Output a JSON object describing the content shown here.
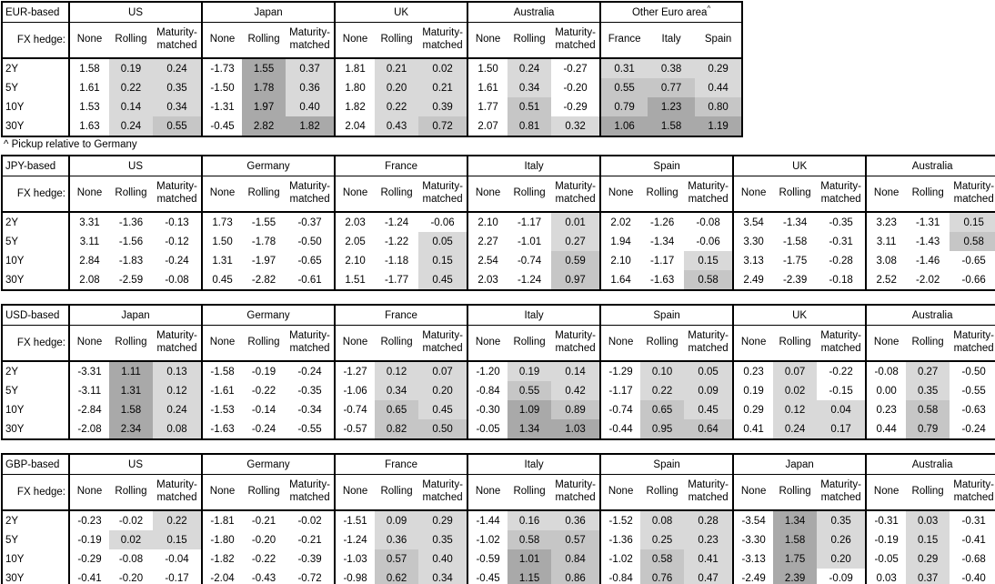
{
  "fx_hedge_label": "FX hedge:",
  "hedge_columns": [
    "None",
    "Rolling",
    "Maturity-matched"
  ],
  "tenors": [
    "2Y",
    "5Y",
    "10Y",
    "30Y"
  ],
  "footnote": "^ Pickup relative to Germany",
  "shade_colors": {
    "low": "#d9d9d9",
    "mid": "#c6c6c6",
    "high": "#a9a9a9"
  },
  "shade_thresholds": {
    "low_min": 0,
    "mid_min": 0.5,
    "high_min": 1.0
  },
  "tables": [
    {
      "base": "EUR-based",
      "full_width": false,
      "groups": [
        {
          "name": "US",
          "rows": [
            [
              "1.58",
              "0.19",
              "0.24"
            ],
            [
              "1.61",
              "0.22",
              "0.35"
            ],
            [
              "1.53",
              "0.14",
              "0.34"
            ],
            [
              "1.63",
              "0.24",
              "0.55"
            ]
          ]
        },
        {
          "name": "Japan",
          "rows": [
            [
              "-1.73",
              "1.55",
              "0.37"
            ],
            [
              "-1.50",
              "1.78",
              "0.36"
            ],
            [
              "-1.31",
              "1.97",
              "0.40"
            ],
            [
              "-0.45",
              "2.82",
              "1.82"
            ]
          ]
        },
        {
          "name": "UK",
          "rows": [
            [
              "1.81",
              "0.21",
              "0.02"
            ],
            [
              "1.80",
              "0.20",
              "0.21"
            ],
            [
              "1.82",
              "0.22",
              "0.39"
            ],
            [
              "2.04",
              "0.43",
              "0.72"
            ]
          ]
        },
        {
          "name": "Australia",
          "rows": [
            [
              "1.50",
              "0.24",
              "-0.27"
            ],
            [
              "1.61",
              "0.34",
              "-0.20"
            ],
            [
              "1.77",
              "0.51",
              "-0.29"
            ],
            [
              "2.07",
              "0.81",
              "0.32"
            ]
          ]
        },
        {
          "name": "Other Euro area",
          "sup": "^",
          "columns": [
            "France",
            "Italy",
            "Spain"
          ],
          "shade_all": true,
          "rows": [
            [
              "0.31",
              "0.38",
              "0.29"
            ],
            [
              "0.55",
              "0.77",
              "0.44"
            ],
            [
              "0.79",
              "1.23",
              "0.80"
            ],
            [
              "1.06",
              "1.58",
              "1.19"
            ]
          ]
        }
      ]
    },
    {
      "base": "JPY-based",
      "full_width": true,
      "groups": [
        {
          "name": "US",
          "rows": [
            [
              "3.31",
              "-1.36",
              "-0.13"
            ],
            [
              "3.11",
              "-1.56",
              "-0.12"
            ],
            [
              "2.84",
              "-1.83",
              "-0.24"
            ],
            [
              "2.08",
              "-2.59",
              "-0.08"
            ]
          ]
        },
        {
          "name": "Germany",
          "rows": [
            [
              "1.73",
              "-1.55",
              "-0.37"
            ],
            [
              "1.50",
              "-1.78",
              "-0.50"
            ],
            [
              "1.31",
              "-1.97",
              "-0.65"
            ],
            [
              "0.45",
              "-2.82",
              "-0.61"
            ]
          ]
        },
        {
          "name": "France",
          "rows": [
            [
              "2.03",
              "-1.24",
              "-0.06"
            ],
            [
              "2.05",
              "-1.22",
              "0.05"
            ],
            [
              "2.10",
              "-1.18",
              "0.15"
            ],
            [
              "1.51",
              "-1.77",
              "0.45"
            ]
          ]
        },
        {
          "name": "Italy",
          "rows": [
            [
              "2.10",
              "-1.17",
              "0.01"
            ],
            [
              "2.27",
              "-1.01",
              "0.27"
            ],
            [
              "2.54",
              "-0.74",
              "0.59"
            ],
            [
              "2.03",
              "-1.24",
              "0.97"
            ]
          ]
        },
        {
          "name": "Spain",
          "rows": [
            [
              "2.02",
              "-1.26",
              "-0.08"
            ],
            [
              "1.94",
              "-1.34",
              "-0.06"
            ],
            [
              "2.10",
              "-1.17",
              "0.15"
            ],
            [
              "1.64",
              "-1.63",
              "0.58"
            ]
          ]
        },
        {
          "name": "UK",
          "rows": [
            [
              "3.54",
              "-1.34",
              "-0.35"
            ],
            [
              "3.30",
              "-1.58",
              "-0.31"
            ],
            [
              "3.13",
              "-1.75",
              "-0.28"
            ],
            [
              "2.49",
              "-2.39",
              "-0.18"
            ]
          ]
        },
        {
          "name": "Australia",
          "rows": [
            [
              "3.23",
              "-1.31",
              "0.15"
            ],
            [
              "3.11",
              "-1.43",
              "0.58"
            ],
            [
              "3.08",
              "-1.46",
              "-0.65"
            ],
            [
              "2.52",
              "-2.02",
              "-0.66"
            ]
          ]
        }
      ]
    },
    {
      "base": "USD-based",
      "full_width": true,
      "groups": [
        {
          "name": "Japan",
          "rows": [
            [
              "-3.31",
              "1.11",
              "0.13"
            ],
            [
              "-3.11",
              "1.31",
              "0.12"
            ],
            [
              "-2.84",
              "1.58",
              "0.24"
            ],
            [
              "-2.08",
              "2.34",
              "0.08"
            ]
          ]
        },
        {
          "name": "Germany",
          "rows": [
            [
              "-1.58",
              "-0.19",
              "-0.24"
            ],
            [
              "-1.61",
              "-0.22",
              "-0.35"
            ],
            [
              "-1.53",
              "-0.14",
              "-0.34"
            ],
            [
              "-1.63",
              "-0.24",
              "-0.55"
            ]
          ]
        },
        {
          "name": "France",
          "rows": [
            [
              "-1.27",
              "0.12",
              "0.07"
            ],
            [
              "-1.06",
              "0.34",
              "0.20"
            ],
            [
              "-0.74",
              "0.65",
              "0.45"
            ],
            [
              "-0.57",
              "0.82",
              "0.50"
            ]
          ]
        },
        {
          "name": "Italy",
          "rows": [
            [
              "-1.20",
              "0.19",
              "0.14"
            ],
            [
              "-0.84",
              "0.55",
              "0.42"
            ],
            [
              "-0.30",
              "1.09",
              "0.89"
            ],
            [
              "-0.05",
              "1.34",
              "1.03"
            ]
          ]
        },
        {
          "name": "Spain",
          "rows": [
            [
              "-1.29",
              "0.10",
              "0.05"
            ],
            [
              "-1.17",
              "0.22",
              "0.09"
            ],
            [
              "-0.74",
              "0.65",
              "0.45"
            ],
            [
              "-0.44",
              "0.95",
              "0.64"
            ]
          ]
        },
        {
          "name": "UK",
          "rows": [
            [
              "0.23",
              "0.07",
              "-0.22"
            ],
            [
              "0.19",
              "0.02",
              "-0.15"
            ],
            [
              "0.29",
              "0.12",
              "0.04"
            ],
            [
              "0.41",
              "0.24",
              "0.17"
            ]
          ]
        },
        {
          "name": "Australia",
          "rows": [
            [
              "-0.08",
              "0.27",
              "-0.50"
            ],
            [
              "0.00",
              "0.35",
              "-0.55"
            ],
            [
              "0.23",
              "0.58",
              "-0.63"
            ],
            [
              "0.44",
              "0.79",
              "-0.24"
            ]
          ]
        }
      ]
    },
    {
      "base": "GBP-based",
      "full_width": true,
      "groups": [
        {
          "name": "US",
          "rows": [
            [
              "-0.23",
              "-0.02",
              "0.22"
            ],
            [
              "-0.19",
              "0.02",
              "0.15"
            ],
            [
              "-0.29",
              "-0.08",
              "-0.04"
            ],
            [
              "-0.41",
              "-0.20",
              "-0.17"
            ]
          ]
        },
        {
          "name": "Germany",
          "rows": [
            [
              "-1.81",
              "-0.21",
              "-0.02"
            ],
            [
              "-1.80",
              "-0.20",
              "-0.21"
            ],
            [
              "-1.82",
              "-0.22",
              "-0.39"
            ],
            [
              "-2.04",
              "-0.43",
              "-0.72"
            ]
          ]
        },
        {
          "name": "France",
          "rows": [
            [
              "-1.51",
              "0.09",
              "0.29"
            ],
            [
              "-1.24",
              "0.36",
              "0.35"
            ],
            [
              "-1.03",
              "0.57",
              "0.40"
            ],
            [
              "-0.98",
              "0.62",
              "0.34"
            ]
          ]
        },
        {
          "name": "Italy",
          "rows": [
            [
              "-1.44",
              "0.16",
              "0.36"
            ],
            [
              "-1.02",
              "0.58",
              "0.57"
            ],
            [
              "-0.59",
              "1.01",
              "0.84"
            ],
            [
              "-0.45",
              "1.15",
              "0.86"
            ]
          ]
        },
        {
          "name": "Spain",
          "rows": [
            [
              "-1.52",
              "0.08",
              "0.28"
            ],
            [
              "-1.36",
              "0.25",
              "0.23"
            ],
            [
              "-1.02",
              "0.58",
              "0.41"
            ],
            [
              "-0.84",
              "0.76",
              "0.47"
            ]
          ]
        },
        {
          "name": "Japan",
          "rows": [
            [
              "-3.54",
              "1.34",
              "0.35"
            ],
            [
              "-3.30",
              "1.58",
              "0.26"
            ],
            [
              "-3.13",
              "1.75",
              "0.20"
            ],
            [
              "-2.49",
              "2.39",
              "-0.09"
            ]
          ]
        },
        {
          "name": "Australia",
          "rows": [
            [
              "-0.31",
              "0.03",
              "-0.31"
            ],
            [
              "-0.19",
              "0.15",
              "-0.41"
            ],
            [
              "-0.05",
              "0.29",
              "-0.68"
            ],
            [
              "0.03",
              "0.37",
              "-0.40"
            ]
          ]
        }
      ]
    }
  ]
}
